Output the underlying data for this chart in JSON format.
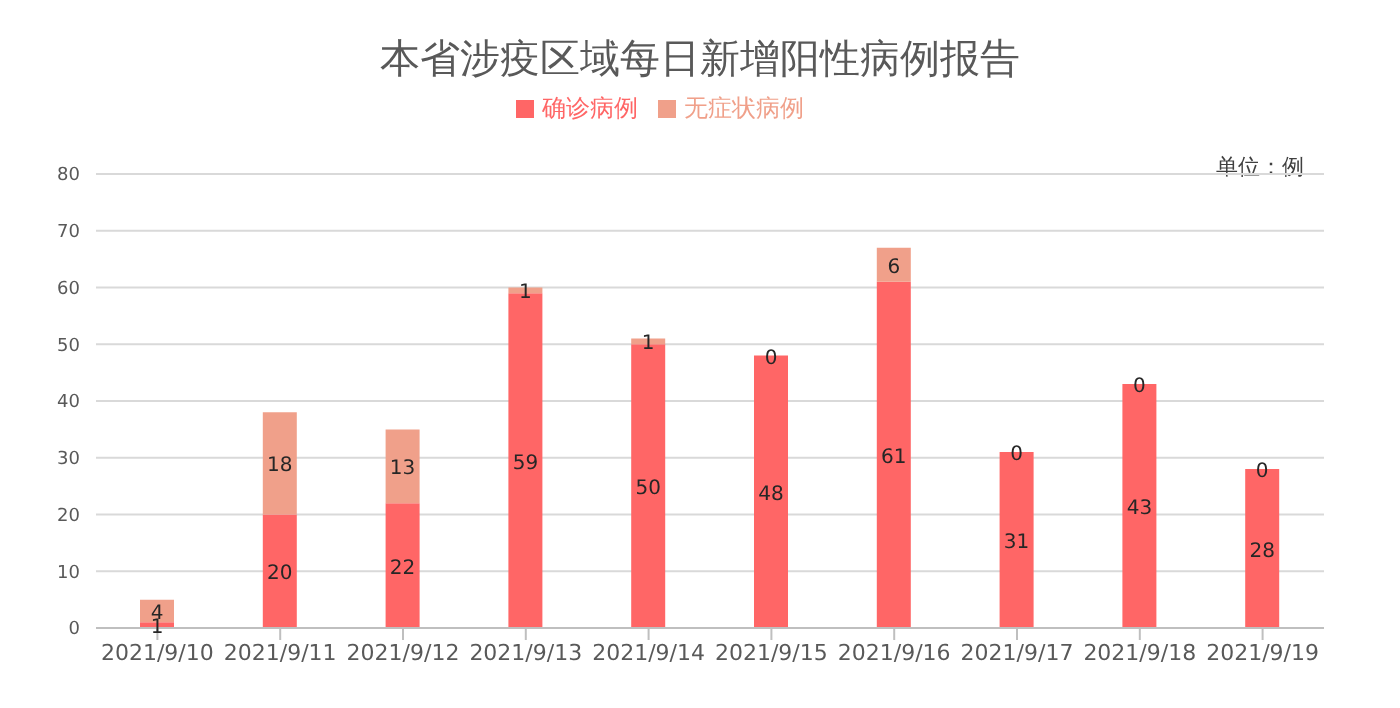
{
  "chart_data": {
    "type": "bar",
    "title": "本省涉疫区域每日新增阳性病例报告",
    "annotations": [
      "单位：例"
    ],
    "categories": [
      "2021/9/10",
      "2021/9/11",
      "2021/9/12",
      "2021/9/13",
      "2021/9/14",
      "2021/9/15",
      "2021/9/16",
      "2021/9/17",
      "2021/9/18",
      "2021/9/19"
    ],
    "series": [
      {
        "name": "确诊病例",
        "color": "#ff6666",
        "values": [
          1,
          20,
          22,
          59,
          50,
          48,
          61,
          31,
          43,
          28
        ]
      },
      {
        "name": "无症状病例",
        "color": "#f0a08a",
        "values": [
          4,
          18,
          13,
          1,
          1,
          0,
          6,
          0,
          0,
          0
        ]
      }
    ],
    "stacked": true,
    "ylim": [
      0,
      80
    ],
    "yticks": [
      0,
      10,
      20,
      30,
      40,
      50,
      60,
      70,
      80
    ],
    "grid": "y",
    "legend": "top",
    "data_labels": true
  }
}
